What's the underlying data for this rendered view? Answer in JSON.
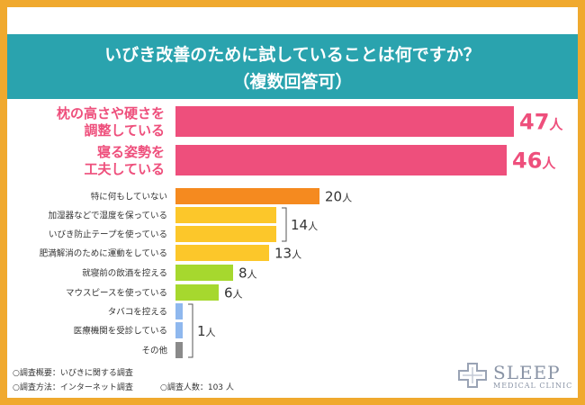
{
  "header": {
    "title_line1": "いびき改善のために試していることは何ですか？",
    "title_line2": "（複数回答可）"
  },
  "chart_data": {
    "type": "bar",
    "orientation": "horizontal",
    "title": "いびき改善のために試していることは何ですか？（複数回答可）",
    "unit": "人",
    "categories": [
      "枕の高さや硬さを調整している",
      "寝る姿勢を工夫している",
      "特に何もしていない",
      "加湿器などで湿度を保っている",
      "いびき防止テープを使っている",
      "肥満解消のために運動をしている",
      "就寝前の飲酒を控える",
      "マウスピースを使っている",
      "タバコを控える",
      "医療機関を受診している",
      "その他"
    ],
    "values": [
      47,
      46,
      20,
      14,
      14,
      13,
      8,
      6,
      1,
      1,
      1
    ],
    "labels": [
      {
        "lines": [
          "枕の高さや硬さを",
          "調整している"
        ],
        "highlight": true
      },
      {
        "lines": [
          "寝る姿勢を",
          "工夫している"
        ],
        "highlight": true
      },
      {
        "lines": [
          "特に何もしていない"
        ]
      },
      {
        "lines": [
          "加湿器などで湿度を保っている"
        ]
      },
      {
        "lines": [
          "いびき防止テープを使っている"
        ]
      },
      {
        "lines": [
          "肥満解消のために運動をしている"
        ]
      },
      {
        "lines": [
          "就寝前の飲酒を控える"
        ]
      },
      {
        "lines": [
          "マウスピースを使っている"
        ]
      },
      {
        "lines": [
          "タバコを控える"
        ]
      },
      {
        "lines": [
          "医療機関を受診している"
        ]
      },
      {
        "lines": [
          "その他"
        ]
      }
    ],
    "colors": [
      "#ee4f7c",
      "#ee4f7c",
      "#f58a1f",
      "#fcc72a",
      "#fcc72a",
      "#fcc72a",
      "#a6d82e",
      "#a6d82e",
      "#8fb8ee",
      "#8fb8ee",
      "#8a8a8a"
    ],
    "value_labels": [
      {
        "rows": [
          0
        ],
        "value": "47",
        "unit": "人",
        "size": "large",
        "color": "#ee4f7c"
      },
      {
        "rows": [
          1
        ],
        "value": "46",
        "unit": "人",
        "size": "large",
        "color": "#ee4f7c"
      },
      {
        "rows": [
          2
        ],
        "value": "20",
        "unit": "人",
        "size": "small",
        "color": "#333333"
      },
      {
        "rows": [
          3,
          4
        ],
        "value": "14",
        "unit": "人",
        "size": "small",
        "color": "#333333",
        "bracket": true
      },
      {
        "rows": [
          5
        ],
        "value": "13",
        "unit": "人",
        "size": "small",
        "color": "#333333"
      },
      {
        "rows": [
          6
        ],
        "value": "8",
        "unit": "人",
        "size": "small",
        "color": "#333333"
      },
      {
        "rows": [
          7
        ],
        "value": "6",
        "unit": "人",
        "size": "small",
        "color": "#333333"
      },
      {
        "rows": [
          8,
          9,
          10
        ],
        "value": "1",
        "unit": "人",
        "size": "small",
        "color": "#333333",
        "bracket": true
      }
    ],
    "xlim": [
      0,
      47
    ]
  },
  "footer": {
    "survey_summary": "○調査概要：いびきに関する調査",
    "survey_method": "○調査方法：インターネット調査",
    "respondents": "○調査人数：103 人"
  },
  "logo": {
    "name": "SLEEP",
    "sub": "MEDICAL CLINIC"
  },
  "colors": {
    "border": "#f0a92e",
    "title_band": "#2aa3ae",
    "highlight": "#ee4f7c"
  }
}
